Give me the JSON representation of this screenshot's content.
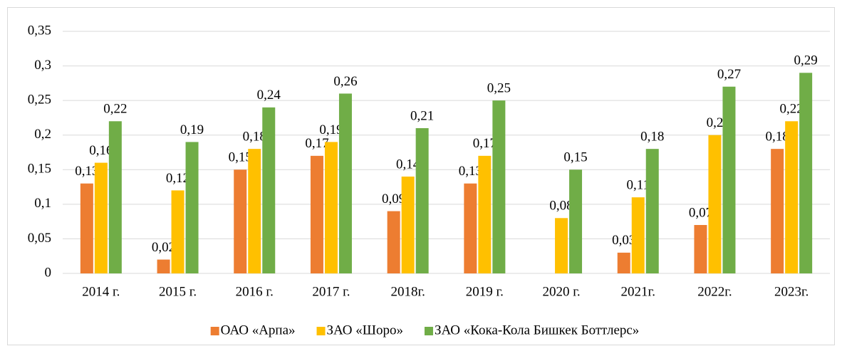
{
  "chart_data": {
    "type": "bar",
    "categories": [
      "2014 г.",
      "2015 г.",
      "2016 г.",
      "2017 г.",
      "2018г.",
      "2019 г.",
      "2020 г.",
      "2021г.",
      "2022г.",
      "2023г."
    ],
    "series": [
      {
        "name": "ОАО «Арпа»",
        "color": "#ed7d31",
        "values": [
          0.13,
          0.02,
          0.15,
          0.17,
          0.09,
          0.13,
          null,
          0.03,
          0.07,
          0.18
        ],
        "value_labels": [
          "0,13",
          "0,02",
          "0,15",
          "0,17",
          "0,09",
          "0,13",
          null,
          "0,03",
          "0,07",
          "0,18"
        ]
      },
      {
        "name": "ЗАО «Шоро»",
        "color": "#ffc000",
        "values": [
          0.16,
          0.12,
          0.18,
          0.19,
          0.14,
          0.17,
          0.08,
          0.11,
          0.2,
          0.22
        ],
        "value_labels": [
          "0,16",
          "0,12",
          "0,18",
          "0,19",
          "0,14",
          "0,17",
          "0,08",
          "0,11",
          "0,2",
          "0,22"
        ]
      },
      {
        "name": "ЗАО «Кока-Кола Бишкек Боттлерс»",
        "color": "#70ad47",
        "values": [
          0.22,
          0.19,
          0.24,
          0.26,
          0.21,
          0.25,
          0.15,
          0.18,
          0.27,
          0.29
        ],
        "value_labels": [
          "0,22",
          "0,19",
          "0,24",
          "0,26",
          "0,21",
          "0,25",
          "0,15",
          "0,18",
          "0,27",
          "0,29"
        ]
      }
    ],
    "ylim": [
      0,
      0.35
    ],
    "yticks": [
      {
        "value": 0,
        "label": "0"
      },
      {
        "value": 0.05,
        "label": "0,05"
      },
      {
        "value": 0.1,
        "label": "0,1"
      },
      {
        "value": 0.15,
        "label": "0,15"
      },
      {
        "value": 0.2,
        "label": "0,2"
      },
      {
        "value": 0.25,
        "label": "0,25"
      },
      {
        "value": 0.3,
        "label": "0,3"
      },
      {
        "value": 0.35,
        "label": "0,35"
      }
    ],
    "grid": true,
    "legend": "bottom"
  }
}
